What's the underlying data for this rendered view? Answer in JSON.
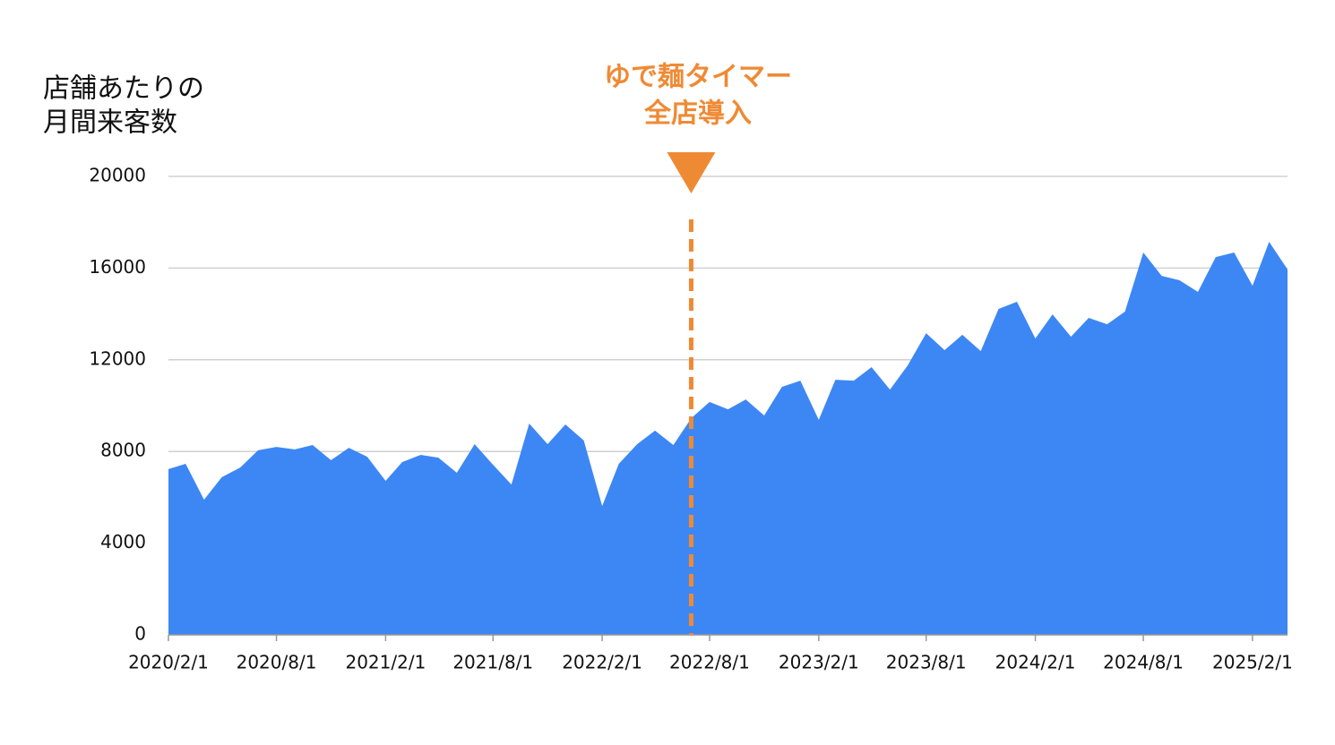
{
  "chart_data": {
    "type": "area",
    "y_title": [
      "店舗あたりの",
      "月間来客数"
    ],
    "annotation": {
      "text": [
        "ゆで麺タイマー",
        "全店導入"
      ],
      "x": "2022/7/1",
      "color": "#ef8a34"
    },
    "x": [
      "2020/2/1",
      "2020/3/1",
      "2020/4/1",
      "2020/5/1",
      "2020/6/1",
      "2020/7/1",
      "2020/8/1",
      "2020/9/1",
      "2020/10/1",
      "2020/11/1",
      "2020/12/1",
      "2021/1/1",
      "2021/2/1",
      "2021/3/1",
      "2021/4/1",
      "2021/5/1",
      "2021/6/1",
      "2021/7/1",
      "2021/8/1",
      "2021/9/1",
      "2021/10/1",
      "2021/11/1",
      "2021/12/1",
      "2022/1/1",
      "2022/2/1",
      "2022/3/1",
      "2022/4/1",
      "2022/5/1",
      "2022/6/1",
      "2022/7/1",
      "2022/8/1",
      "2022/9/1",
      "2022/10/1",
      "2022/11/1",
      "2022/12/1",
      "2023/1/1",
      "2023/2/1",
      "2023/3/1",
      "2023/4/1",
      "2023/5/1",
      "2023/6/1",
      "2023/7/1",
      "2023/8/1",
      "2023/9/1",
      "2023/10/1",
      "2023/11/1",
      "2023/12/1",
      "2024/1/1",
      "2024/2/1",
      "2024/3/1",
      "2024/4/1",
      "2024/5/1",
      "2024/6/1",
      "2024/7/1",
      "2024/8/1",
      "2024/9/1",
      "2024/10/1",
      "2024/11/1",
      "2024/12/1",
      "2025/1/1",
      "2025/2/1",
      "2025/3/1",
      "2025/4/1"
    ],
    "values": [
      7230,
      7460,
      5900,
      6880,
      7300,
      8050,
      8200,
      8090,
      8280,
      7620,
      8160,
      7770,
      6720,
      7540,
      7850,
      7730,
      7070,
      8320,
      7420,
      6560,
      9220,
      8320,
      9180,
      8480,
      5620,
      7460,
      8320,
      8910,
      8280,
      9450,
      10160,
      9840,
      10270,
      9570,
      10820,
      11090,
      9380,
      11130,
      11090,
      11680,
      10700,
      11760,
      13160,
      12420,
      13090,
      12380,
      14220,
      14530,
      12930,
      13980,
      13010,
      13830,
      13550,
      14100,
      16680,
      15660,
      15470,
      14960,
      16480,
      16680,
      15230,
      17150,
      15940
    ],
    "color": "#3d87f5",
    "xlim": [
      "2020/2/1",
      "2025/4/1"
    ],
    "xticks": [
      "2020/2/1",
      "2020/8/1",
      "2021/2/1",
      "2021/8/1",
      "2022/2/1",
      "2022/8/1",
      "2023/2/1",
      "2023/8/1",
      "2024/2/1",
      "2024/8/1",
      "2025/2/1"
    ],
    "ylim": [
      0,
      20000
    ],
    "yticks": [
      0,
      4000,
      8000,
      12000,
      16000,
      20000
    ],
    "grid": true
  }
}
